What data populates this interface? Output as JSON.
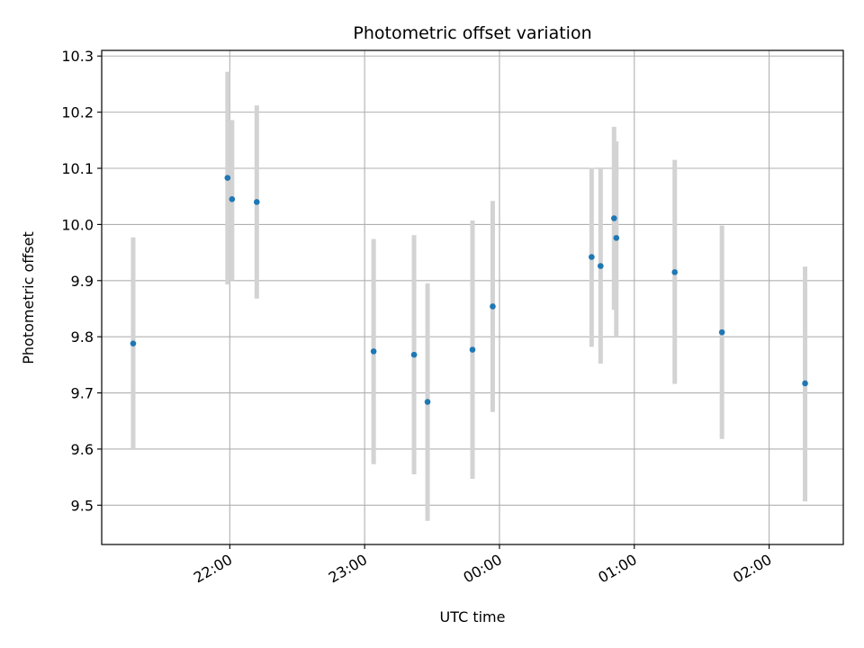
{
  "chart_data": {
    "type": "scatter",
    "title": "Photometric offset variation",
    "xlabel": "UTC time",
    "ylabel": "Photometric offset",
    "x_tick_labels": [
      "22:00",
      "23:00",
      "00:00",
      "01:00",
      "02:00"
    ],
    "x_tick_minutes": [
      1320,
      1380,
      1440,
      1500,
      1560
    ],
    "y_ticks": [
      9.5,
      9.6,
      9.7,
      9.8,
      9.9,
      10.0,
      10.1,
      10.2,
      10.3
    ],
    "xlim_minutes": [
      1263,
      1593
    ],
    "ylim": [
      9.43,
      10.31
    ],
    "grid": true,
    "colors": {
      "point": "#1f77b4",
      "errorbar": "#d3d3d3",
      "grid": "#b0b0b0"
    },
    "points": [
      {
        "time": "21:17",
        "minute": 1277,
        "y": 9.788,
        "err_low": 9.6,
        "err_high": 9.977
      },
      {
        "time": "21:59",
        "minute": 1319,
        "y": 10.083,
        "err_low": 9.893,
        "err_high": 10.272
      },
      {
        "time": "22:01",
        "minute": 1321,
        "y": 10.045,
        "err_low": 9.9,
        "err_high": 10.186
      },
      {
        "time": "22:12",
        "minute": 1332,
        "y": 10.04,
        "err_low": 9.868,
        "err_high": 10.212
      },
      {
        "time": "23:04",
        "minute": 1384,
        "y": 9.774,
        "err_low": 9.573,
        "err_high": 9.974
      },
      {
        "time": "23:22",
        "minute": 1402,
        "y": 9.768,
        "err_low": 9.555,
        "err_high": 9.981
      },
      {
        "time": "23:28",
        "minute": 1408,
        "y": 9.684,
        "err_low": 9.472,
        "err_high": 9.895
      },
      {
        "time": "23:48",
        "minute": 1428,
        "y": 9.777,
        "err_low": 9.547,
        "err_high": 10.007
      },
      {
        "time": "23:57",
        "minute": 1437,
        "y": 9.854,
        "err_low": 9.666,
        "err_high": 10.042
      },
      {
        "time": "00:41",
        "minute": 1481,
        "y": 9.942,
        "err_low": 9.782,
        "err_high": 10.101
      },
      {
        "time": "00:45",
        "minute": 1485,
        "y": 9.926,
        "err_low": 9.752,
        "err_high": 10.1
      },
      {
        "time": "00:51",
        "minute": 1491,
        "y": 10.011,
        "err_low": 9.848,
        "err_high": 10.174
      },
      {
        "time": "00:52",
        "minute": 1492,
        "y": 9.976,
        "err_low": 9.8,
        "err_high": 10.148
      },
      {
        "time": "01:18",
        "minute": 1518,
        "y": 9.915,
        "err_low": 9.716,
        "err_high": 10.115
      },
      {
        "time": "01:39",
        "minute": 1539,
        "y": 9.808,
        "err_low": 9.618,
        "err_high": 9.998
      },
      {
        "time": "02:16",
        "minute": 1576,
        "y": 9.717,
        "err_low": 9.507,
        "err_high": 9.925
      }
    ]
  }
}
